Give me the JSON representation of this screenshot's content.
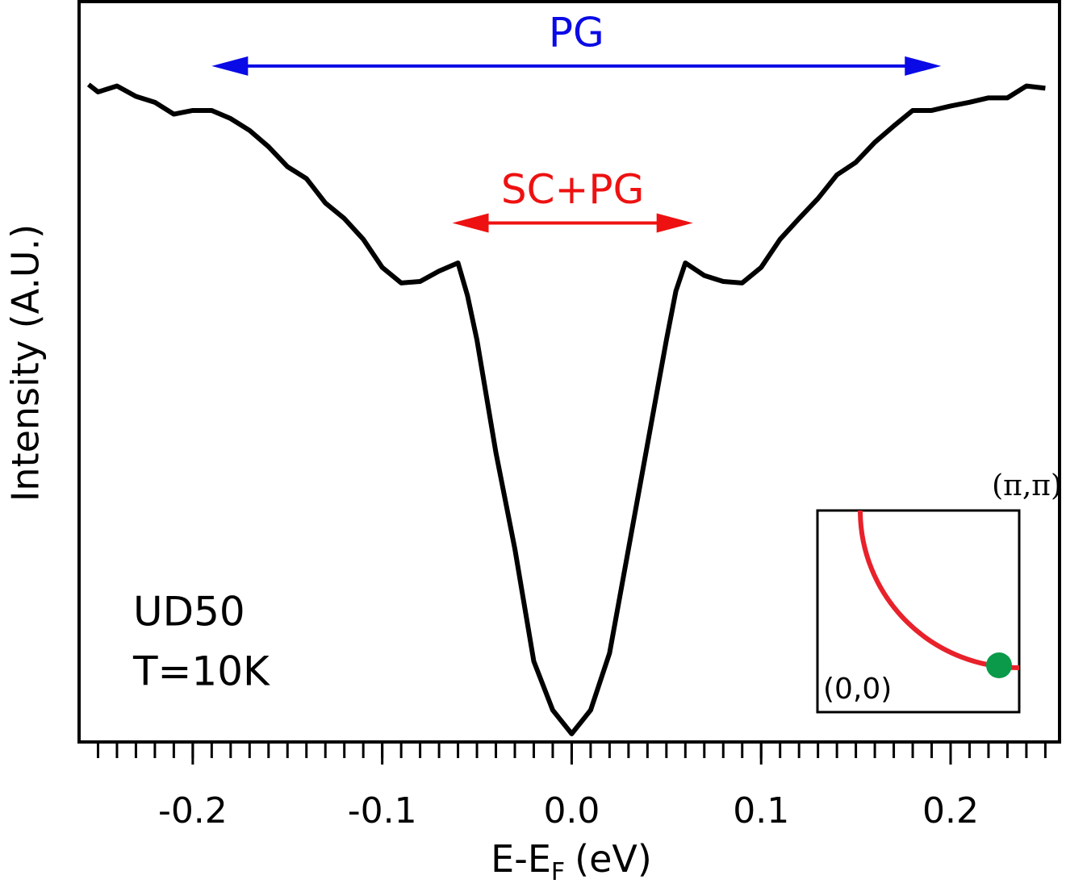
{
  "chart_data": {
    "type": "line",
    "xlabel": {
      "text": "E-E",
      "subscript": "F",
      "unit": "(eV)"
    },
    "ylabel": "Intensity (A.U.)",
    "xlim": [
      -0.26,
      0.2575
    ],
    "ylim": [
      0,
      1
    ],
    "xticks": [
      -0.2,
      -0.1,
      {
        "value": 0,
        "label": "0.0"
      },
      0.1,
      0.2
    ],
    "xminor_ticks": [
      -0.25,
      -0.24,
      -0.23,
      -0.22,
      -0.21,
      -0.2,
      -0.19,
      -0.18,
      -0.17,
      -0.16,
      -0.15,
      -0.14,
      -0.13,
      -0.12,
      -0.11,
      -0.1,
      -0.09,
      -0.08,
      -0.07,
      -0.06,
      -0.05,
      -0.04,
      -0.03,
      -0.02,
      -0.01,
      0,
      0.01,
      0.02,
      0.03,
      0.04,
      0.05,
      0.06,
      0.07,
      0.08,
      0.09,
      0.1,
      0.11,
      0.12,
      0.13,
      0.14,
      0.15,
      0.16,
      0.17,
      0.18,
      0.19,
      0.2,
      0.21,
      0.22,
      0.23,
      0.24,
      0.25
    ],
    "x": [
      -0.255,
      -0.25,
      -0.24,
      -0.23,
      -0.22,
      -0.21,
      -0.2,
      -0.19,
      -0.18,
      -0.17,
      -0.16,
      -0.15,
      -0.14,
      -0.13,
      -0.12,
      -0.11,
      -0.1,
      -0.09,
      -0.08,
      -0.07,
      -0.06,
      -0.055,
      -0.05,
      -0.04,
      -0.03,
      -0.02,
      -0.01,
      0,
      0.01,
      0.02,
      0.03,
      0.04,
      0.05,
      0.055,
      0.06,
      0.07,
      0.08,
      0.09,
      0.1,
      0.11,
      0.12,
      0.13,
      0.14,
      0.15,
      0.16,
      0.17,
      0.18,
      0.19,
      0.2,
      0.21,
      0.22,
      0.23,
      0.24,
      0.25
    ],
    "series": [
      {
        "color": "#000000",
        "values": [
          0.888,
          0.878,
          0.886,
          0.872,
          0.864,
          0.848,
          0.853,
          0.853,
          0.842,
          0.826,
          0.804,
          0.777,
          0.761,
          0.728,
          0.707,
          0.679,
          0.641,
          0.62,
          0.622,
          0.636,
          0.647,
          0.603,
          0.543,
          0.391,
          0.261,
          0.109,
          0.043,
          0.011,
          0.043,
          0.12,
          0.261,
          0.402,
          0.543,
          0.609,
          0.647,
          0.63,
          0.622,
          0.62,
          0.641,
          0.679,
          0.707,
          0.734,
          0.766,
          0.783,
          0.81,
          0.832,
          0.853,
          0.853,
          0.859,
          0.864,
          0.87,
          0.87,
          0.886,
          0.883
        ]
      }
    ],
    "annotations": [
      {
        "text": "PG",
        "x": [
          -0.19,
          0.195
        ],
        "y": 0.913,
        "color": "#0a0ae6"
      },
      {
        "text": "SC+PG",
        "x": [
          -0.063,
          0.064
        ],
        "y": 0.701,
        "color": "#ee1111"
      }
    ],
    "sample_label": [
      "UD50",
      "T=10K"
    ],
    "inset": {
      "corner_top_right": "(π,π)",
      "corner_bottom_left": "(0,0)"
    }
  }
}
